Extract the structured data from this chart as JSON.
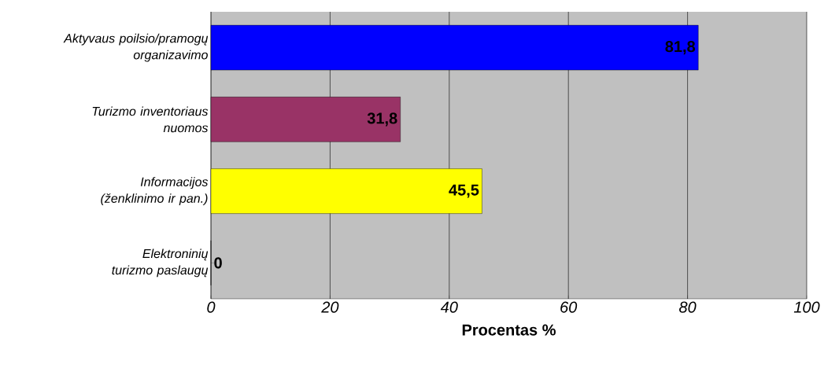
{
  "chart_data": {
    "type": "bar",
    "orientation": "horizontal",
    "categories": [
      "Aktyvaus poilsio/pramogų organizavimo",
      "Turizmo inventoriaus nuomos",
      "Informacijos (ženklinimo ir pan.)",
      "Elektroninių turizmo paslaugų"
    ],
    "values": [
      81.8,
      31.8,
      45.5,
      0
    ],
    "colors": [
      "#0000ff",
      "#993366",
      "#ffff00",
      "#006600"
    ],
    "value_labels": [
      "81,8",
      "31,8",
      "45,5",
      "0"
    ],
    "xlim": [
      0,
      100
    ],
    "xticks": [
      0,
      20,
      40,
      60,
      80,
      100
    ],
    "xlabel": "Procentas %",
    "grid": "x"
  }
}
